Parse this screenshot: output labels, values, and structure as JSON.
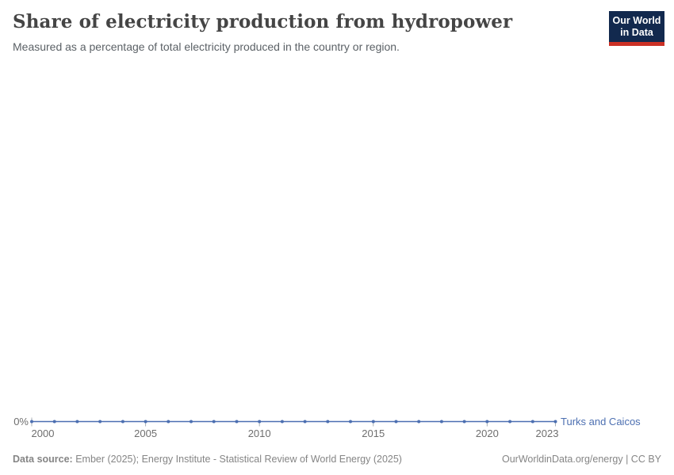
{
  "header": {
    "title": "Share of electricity production from hydropower",
    "subtitle": "Measured as a percentage of total electricity produced in the country or region.",
    "logo": {
      "line1": "Our World",
      "line2": "in Data",
      "bg_color": "#12294e",
      "bar_color": "#cb3025"
    }
  },
  "chart_data": {
    "type": "line",
    "title": "Share of electricity production from hydropower",
    "xlabel": "",
    "ylabel": "",
    "xlim": [
      2000,
      2023
    ],
    "ylim": [
      0,
      1
    ],
    "grid": false,
    "legend_position": "end-of-line",
    "x_ticks": [
      2000,
      2005,
      2010,
      2015,
      2020,
      2023
    ],
    "y_ticks": [
      {
        "value": 0,
        "label": "0%"
      }
    ],
    "x": [
      2000,
      2001,
      2002,
      2003,
      2004,
      2005,
      2006,
      2007,
      2008,
      2009,
      2010,
      2011,
      2012,
      2013,
      2014,
      2015,
      2016,
      2017,
      2018,
      2019,
      2020,
      2021,
      2022,
      2023
    ],
    "series": [
      {
        "name": "Turks and Caicos",
        "color": "#4c6fb1",
        "values": [
          0,
          0,
          0,
          0,
          0,
          0,
          0,
          0,
          0,
          0,
          0,
          0,
          0,
          0,
          0,
          0,
          0,
          0,
          0,
          0,
          0,
          0,
          0,
          0
        ]
      }
    ],
    "axis_color": "#a8afb5",
    "tick_label_color": "#6e6e6e"
  },
  "footer": {
    "source_label": "Data source:",
    "source_text": " Ember (2025); Energy Institute - Statistical Review of World Energy (2025)",
    "right_text": "OurWorldinData.org/energy | CC BY"
  }
}
